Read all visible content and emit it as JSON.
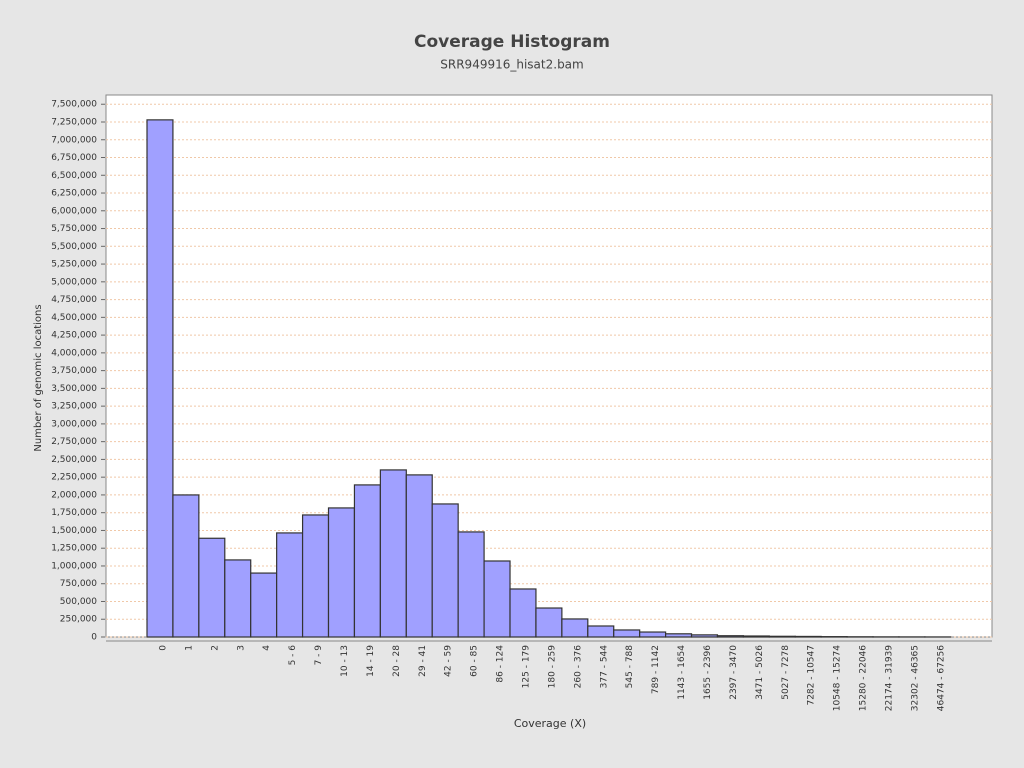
{
  "chart_data": {
    "type": "bar",
    "title": "Coverage Histogram",
    "subtitle": "SRR949916_hisat2.bam",
    "x_label": "Coverage (X)",
    "y_label": "Number of genomic locations",
    "color": "#a0a0ff",
    "grid": true,
    "categories": [
      "0",
      "1",
      "2",
      "3",
      "4",
      "5 - 6",
      "7 - 9",
      "10 - 13",
      "14 - 19",
      "20 - 28",
      "29 - 41",
      "42 - 59",
      "60 - 85",
      "86 - 124",
      "125 - 179",
      "180 - 259",
      "260 - 376",
      "377 - 544",
      "545 - 788",
      "789 - 1142",
      "1143 - 1654",
      "1655 - 2396",
      "2397 - 3470",
      "3471 - 5026",
      "5027 - 7278",
      "7282 - 10547",
      "10548 - 15274",
      "15280 - 22046",
      "22174 - 31939",
      "32302 - 46365",
      "46474 - 67256"
    ],
    "values": [
      7280000,
      2000000,
      1390000,
      1085000,
      900000,
      1465000,
      1718000,
      1817000,
      2141000,
      2352000,
      2282000,
      1873000,
      1479000,
      1070000,
      676000,
      408000,
      254000,
      155000,
      99000,
      70000,
      45000,
      30000,
      18000,
      14000,
      10000,
      8000,
      5000,
      3000,
      2000,
      1500,
      1000
    ],
    "ylim": [
      0,
      7630000
    ],
    "yticks": [
      0,
      {
        "value": 250000,
        "label": "250,000"
      },
      {
        "value": 500000,
        "label": "500,000"
      },
      {
        "value": 750000,
        "label": "750,000"
      },
      {
        "value": 1000000,
        "label": "1,000,000"
      },
      {
        "value": 1250000,
        "label": "1,250,000"
      },
      {
        "value": 1500000,
        "label": "1,500,000"
      },
      {
        "value": 1750000,
        "label": "1,750,000"
      },
      {
        "value": 2000000,
        "label": "2,000,000"
      },
      {
        "value": 2250000,
        "label": "2,250,000"
      },
      {
        "value": 2500000,
        "label": "2,500,000"
      },
      {
        "value": 2750000,
        "label": "2,750,000"
      },
      {
        "value": 3000000,
        "label": "3,000,000"
      },
      {
        "value": 3250000,
        "label": "3,250,000"
      },
      {
        "value": 3500000,
        "label": "3,500,000"
      },
      {
        "value": 3750000,
        "label": "3,750,000"
      },
      {
        "value": 4000000,
        "label": "4,000,000"
      },
      {
        "value": 4250000,
        "label": "4,250,000"
      },
      {
        "value": 4500000,
        "label": "4,500,000"
      },
      {
        "value": 4750000,
        "label": "4,750,000"
      },
      {
        "value": 5000000,
        "label": "5,000,000"
      },
      {
        "value": 5250000,
        "label": "5,250,000"
      },
      {
        "value": 5500000,
        "label": "5,500,000"
      },
      {
        "value": 5750000,
        "label": "5,750,000"
      },
      {
        "value": 6000000,
        "label": "6,000,000"
      },
      {
        "value": 6250000,
        "label": "6,250,000"
      },
      {
        "value": 6500000,
        "label": "6,500,000"
      },
      {
        "value": 6750000,
        "label": "6,750,000"
      },
      {
        "value": 7000000,
        "label": "7,000,000"
      },
      {
        "value": 7250000,
        "label": "7,250,000"
      },
      {
        "value": 7500000,
        "label": "7,500,000"
      }
    ]
  }
}
